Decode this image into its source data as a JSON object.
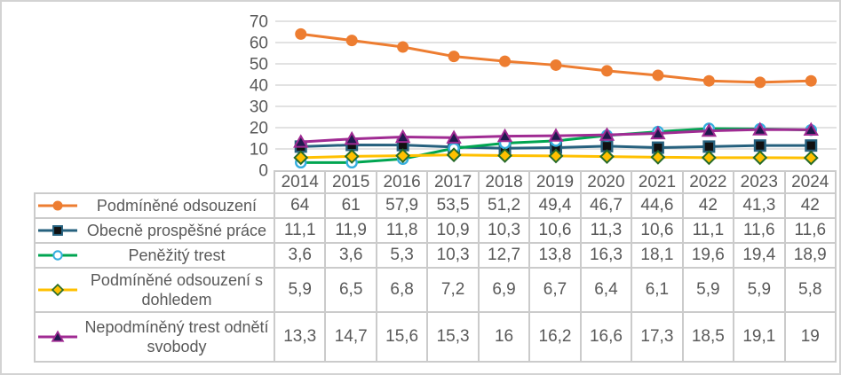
{
  "style": {
    "background": "#FFFFFF",
    "frame_border_color": "#D3D3D3",
    "gridline_color": "#D9D9D9",
    "table_border_color": "#CBCBCB",
    "text_color": "#595959"
  },
  "chart_data": {
    "type": "line",
    "title": "",
    "xlabel": "",
    "ylabel": "",
    "categories": [
      "2014",
      "2015",
      "2016",
      "2017",
      "2018",
      "2019",
      "2020",
      "2021",
      "2022",
      "2023",
      "2024"
    ],
    "ylim": [
      0,
      70
    ],
    "ytick_step": 10,
    "y_tick_labels": [
      "0",
      "10",
      "20",
      "30",
      "40",
      "50",
      "60",
      "70"
    ],
    "grid": true,
    "legend_position": "data-table-left",
    "series": [
      {
        "name": "Podmíněné odsouzení",
        "line_color": "#ED7D31",
        "marker": "circle",
        "marker_fill": "#ED7D31",
        "marker_stroke": "#ED7D31",
        "values": [
          64,
          61,
          57.9,
          53.5,
          51.2,
          49.4,
          46.7,
          44.6,
          42,
          41.3,
          42
        ],
        "display": [
          "64",
          "61",
          "57,9",
          "53,5",
          "51,2",
          "49,4",
          "46,7",
          "44,6",
          "42",
          "41,3",
          "42"
        ]
      },
      {
        "name": "Obecně prospěšné práce",
        "line_color": "#26617E",
        "marker": "square",
        "marker_fill": "#111111",
        "marker_stroke": "#26617E",
        "values": [
          11.1,
          11.9,
          11.8,
          10.9,
          10.3,
          10.6,
          11.3,
          10.6,
          11.1,
          11.6,
          11.6
        ],
        "display": [
          "11,1",
          "11,9",
          "11,8",
          "10,9",
          "10,3",
          "10,6",
          "11,3",
          "10,6",
          "11,1",
          "11,6",
          "11,6"
        ]
      },
      {
        "name": "Peněžitý trest",
        "line_color": "#00A551",
        "marker": "circle-open",
        "marker_fill": "#FFFFFF",
        "marker_stroke": "#35AEDE",
        "values": [
          3.6,
          3.6,
          5.3,
          10.3,
          12.7,
          13.8,
          16.3,
          18.1,
          19.6,
          19.4,
          18.9
        ],
        "display": [
          "3,6",
          "3,6",
          "5,3",
          "10,3",
          "12,7",
          "13,8",
          "16,3",
          "18,1",
          "19,6",
          "19,4",
          "18,9"
        ]
      },
      {
        "name": "Podmíněné odsouzení s dohledem",
        "line_color": "#FFC000",
        "marker": "diamond",
        "marker_fill": "#FFC000",
        "marker_stroke": "#266B29",
        "values": [
          5.9,
          6.5,
          6.8,
          7.2,
          6.9,
          6.7,
          6.4,
          6.1,
          5.9,
          5.9,
          5.8
        ],
        "display": [
          "5,9",
          "6,5",
          "6,8",
          "7,2",
          "6,9",
          "6,7",
          "6,4",
          "6,1",
          "5,9",
          "5,9",
          "5,8"
        ]
      },
      {
        "name": "Nepodmíněný trest odnětí svobody",
        "line_color": "#A02B93",
        "marker": "triangle",
        "marker_fill": "#1F1A4E",
        "marker_stroke": "#A02B93",
        "values": [
          13.3,
          14.7,
          15.6,
          15.3,
          16,
          16.2,
          16.6,
          17.3,
          18.5,
          19.1,
          19
        ],
        "display": [
          "13,3",
          "14,7",
          "15,6",
          "15,3",
          "16",
          "16,2",
          "16,6",
          "17,3",
          "18,5",
          "19,1",
          "19"
        ]
      }
    ]
  }
}
